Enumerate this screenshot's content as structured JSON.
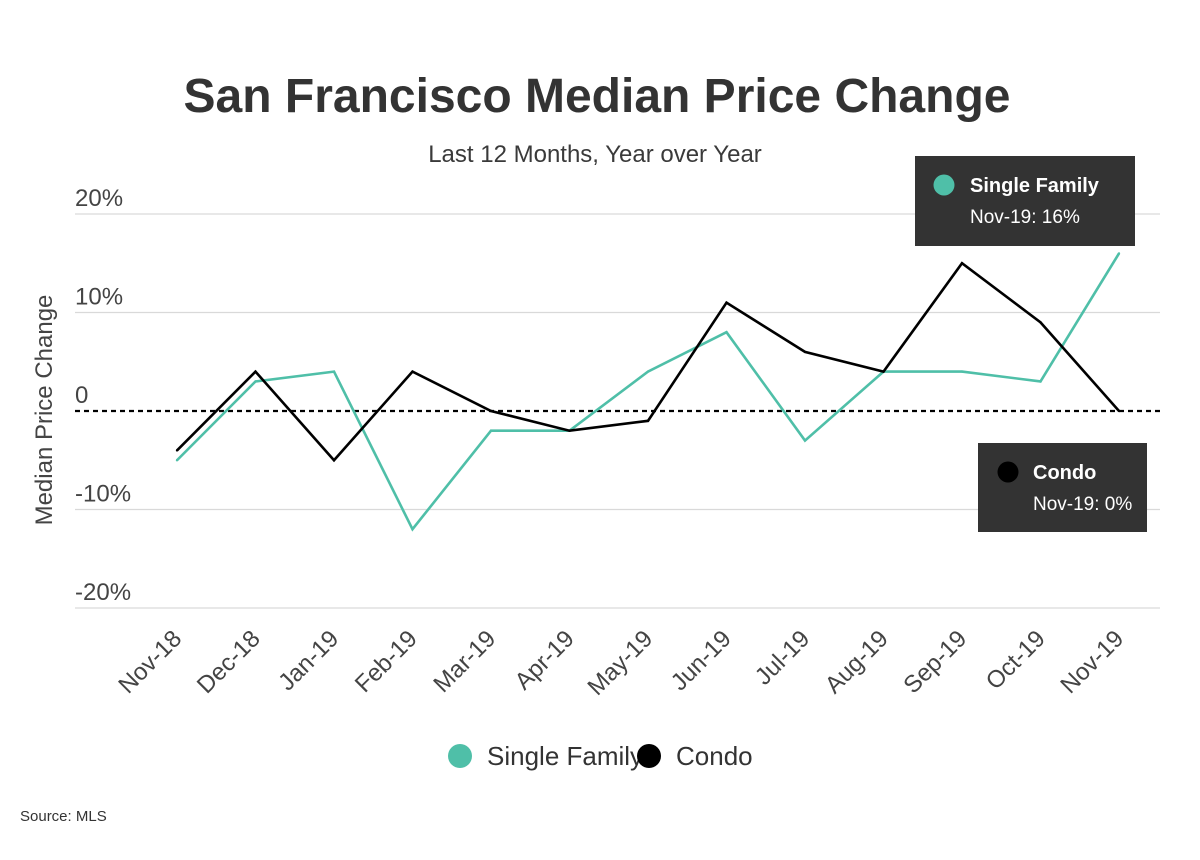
{
  "chart_data": {
    "type": "line",
    "title": "San Francisco Median Price Change",
    "subtitle": "Last 12 Months, Year over Year",
    "ylabel": "Median Price Change",
    "xlabel": "",
    "categories": [
      "Nov-18",
      "Dec-18",
      "Jan-19",
      "Feb-19",
      "Mar-19",
      "Apr-19",
      "May-19",
      "Jun-19",
      "Jul-19",
      "Aug-19",
      "Sep-19",
      "Oct-19",
      "Nov-19"
    ],
    "y_ticks": [
      {
        "value": 20,
        "label": "20%"
      },
      {
        "value": 10,
        "label": "10%"
      },
      {
        "value": 0,
        "label": "0"
      },
      {
        "value": -10,
        "label": "-10%"
      },
      {
        "value": -20,
        "label": "-20%"
      }
    ],
    "ylim": [
      -20,
      20
    ],
    "grid": true,
    "zero_line": "dashed",
    "series": [
      {
        "name": "Single Family",
        "color": "#4fbfa8",
        "values": [
          -5,
          3,
          4,
          -12,
          -2,
          -2,
          4,
          8,
          -3,
          4,
          4,
          3,
          16
        ]
      },
      {
        "name": "Condo",
        "color": "#000000",
        "values": [
          -4,
          4,
          -5,
          4,
          0,
          -2,
          -1,
          11,
          6,
          4,
          15,
          9,
          0
        ]
      }
    ],
    "legend_position": "bottom-center",
    "annotations": [
      {
        "series": "Single Family",
        "name": "Single Family",
        "value_text": "Nov-19: 16%"
      },
      {
        "series": "Condo",
        "name": "Condo",
        "value_text": "Nov-19: 0%"
      }
    ]
  },
  "source": "Source:  MLS"
}
